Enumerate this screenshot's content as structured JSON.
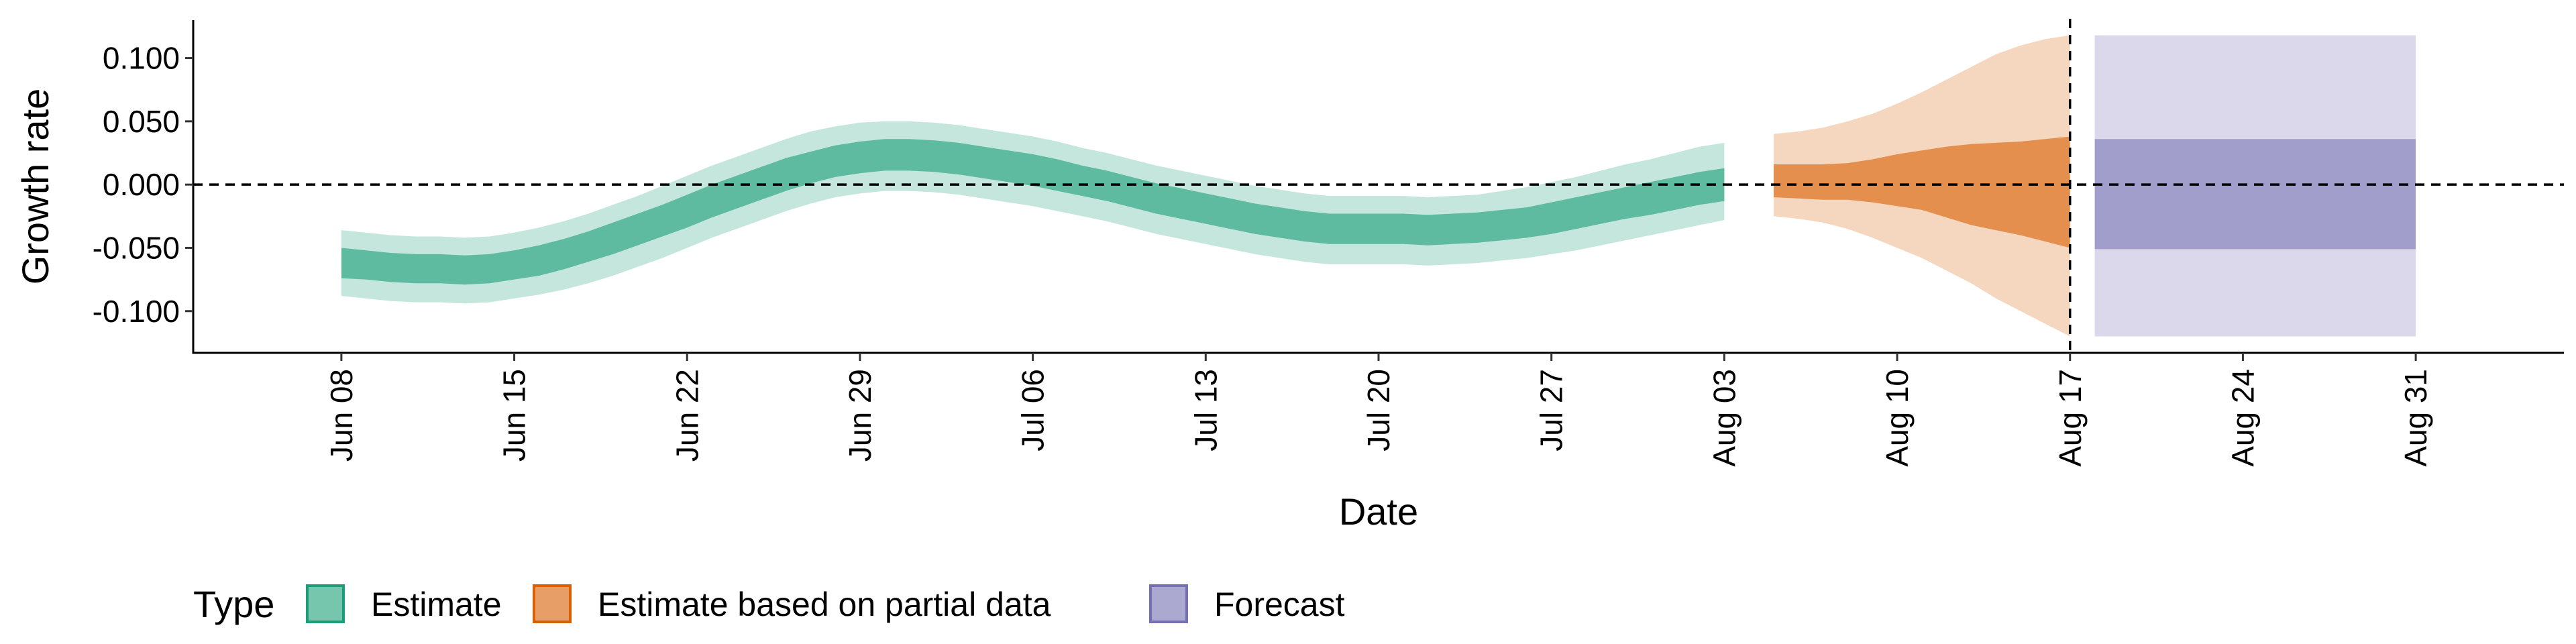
{
  "chart_data": {
    "type": "area",
    "xlabel": "Date",
    "ylabel": "Growth rate",
    "ylim": [
      -0.133,
      0.13
    ],
    "xlim": [
      "2021-06-02",
      "2021-09-06"
    ],
    "x_ticks": [
      "2021-06-08",
      "2021-06-15",
      "2021-06-22",
      "2021-06-29",
      "2021-07-06",
      "2021-07-13",
      "2021-07-20",
      "2021-07-27",
      "2021-08-03",
      "2021-08-10",
      "2021-08-17",
      "2021-08-24",
      "2021-08-31"
    ],
    "x_tick_labels": [
      "Jun 08",
      "Jun 15",
      "Jun 22",
      "Jun 29",
      "Jul 06",
      "Jul 13",
      "Jul 20",
      "Jul 27",
      "Aug 03",
      "Aug 10",
      "Aug 17",
      "Aug 24",
      "Aug 31"
    ],
    "y_ticks": [
      0.1,
      0.05,
      0.0,
      -0.05,
      -0.1
    ],
    "y_tick_labels": [
      "0.100",
      "0.050",
      "0.000",
      "-0.050",
      "-0.100"
    ],
    "hline": 0.0,
    "vline": "2021-08-17",
    "grid": false,
    "legend": {
      "title": "Type",
      "position": "bottom",
      "entries": [
        {
          "label": "Estimate",
          "color": "#1b9e77"
        },
        {
          "label": "Estimate based on partial data",
          "color": "#d95f02"
        },
        {
          "label": "Forecast",
          "color": "#7570b3"
        }
      ]
    },
    "series": [
      {
        "name": "Estimate",
        "color": "#1b9e77",
        "x": [
          "2021-06-08",
          "2021-06-09",
          "2021-06-10",
          "2021-06-11",
          "2021-06-12",
          "2021-06-13",
          "2021-06-14",
          "2021-06-15",
          "2021-06-16",
          "2021-06-17",
          "2021-06-18",
          "2021-06-19",
          "2021-06-20",
          "2021-06-21",
          "2021-06-22",
          "2021-06-23",
          "2021-06-24",
          "2021-06-25",
          "2021-06-26",
          "2021-06-27",
          "2021-06-28",
          "2021-06-29",
          "2021-06-30",
          "2021-07-01",
          "2021-07-02",
          "2021-07-03",
          "2021-07-04",
          "2021-07-05",
          "2021-07-06",
          "2021-07-07",
          "2021-07-08",
          "2021-07-09",
          "2021-07-10",
          "2021-07-11",
          "2021-07-12",
          "2021-07-13",
          "2021-07-14",
          "2021-07-15",
          "2021-07-16",
          "2021-07-17",
          "2021-07-18",
          "2021-07-19",
          "2021-07-20",
          "2021-07-21",
          "2021-07-22",
          "2021-07-23",
          "2021-07-24",
          "2021-07-25",
          "2021-07-26",
          "2021-07-27",
          "2021-07-28",
          "2021-07-29",
          "2021-07-30",
          "2021-07-31",
          "2021-08-01",
          "2021-08-02",
          "2021-08-03"
        ],
        "lower_90": [
          -0.088,
          -0.09,
          -0.092,
          -0.093,
          -0.093,
          -0.094,
          -0.093,
          -0.09,
          -0.087,
          -0.083,
          -0.078,
          -0.072,
          -0.065,
          -0.058,
          -0.05,
          -0.042,
          -0.035,
          -0.028,
          -0.021,
          -0.015,
          -0.01,
          -0.007,
          -0.005,
          -0.005,
          -0.006,
          -0.008,
          -0.011,
          -0.014,
          -0.017,
          -0.021,
          -0.025,
          -0.029,
          -0.034,
          -0.039,
          -0.043,
          -0.047,
          -0.051,
          -0.055,
          -0.058,
          -0.061,
          -0.063,
          -0.063,
          -0.063,
          -0.063,
          -0.064,
          -0.063,
          -0.062,
          -0.06,
          -0.058,
          -0.055,
          -0.052,
          -0.048,
          -0.044,
          -0.04,
          -0.036,
          -0.032,
          -0.028
        ],
        "lower_50": [
          -0.074,
          -0.075,
          -0.077,
          -0.078,
          -0.078,
          -0.079,
          -0.078,
          -0.075,
          -0.072,
          -0.067,
          -0.061,
          -0.055,
          -0.048,
          -0.041,
          -0.034,
          -0.026,
          -0.019,
          -0.012,
          -0.005,
          0.001,
          0.006,
          0.009,
          0.011,
          0.011,
          0.01,
          0.008,
          0.005,
          0.002,
          -0.001,
          -0.005,
          -0.009,
          -0.013,
          -0.018,
          -0.023,
          -0.027,
          -0.031,
          -0.035,
          -0.039,
          -0.042,
          -0.045,
          -0.047,
          -0.047,
          -0.047,
          -0.047,
          -0.048,
          -0.047,
          -0.046,
          -0.044,
          -0.042,
          -0.039,
          -0.035,
          -0.031,
          -0.027,
          -0.024,
          -0.02,
          -0.016,
          -0.013
        ],
        "upper_50": [
          -0.05,
          -0.052,
          -0.054,
          -0.055,
          -0.055,
          -0.056,
          -0.055,
          -0.052,
          -0.048,
          -0.043,
          -0.037,
          -0.03,
          -0.023,
          -0.016,
          -0.008,
          0.0,
          0.007,
          0.014,
          0.021,
          0.026,
          0.031,
          0.034,
          0.036,
          0.036,
          0.035,
          0.033,
          0.03,
          0.027,
          0.024,
          0.02,
          0.015,
          0.011,
          0.006,
          0.001,
          -0.003,
          -0.007,
          -0.011,
          -0.015,
          -0.018,
          -0.021,
          -0.023,
          -0.023,
          -0.023,
          -0.023,
          -0.024,
          -0.023,
          -0.022,
          -0.02,
          -0.018,
          -0.014,
          -0.01,
          -0.006,
          -0.002,
          0.002,
          0.006,
          0.01,
          0.013
        ],
        "upper_90": [
          -0.036,
          -0.038,
          -0.04,
          -0.041,
          -0.041,
          -0.042,
          -0.041,
          -0.038,
          -0.034,
          -0.029,
          -0.023,
          -0.016,
          -0.009,
          -0.001,
          0.007,
          0.015,
          0.022,
          0.029,
          0.036,
          0.042,
          0.046,
          0.049,
          0.05,
          0.05,
          0.049,
          0.047,
          0.044,
          0.041,
          0.038,
          0.034,
          0.029,
          0.025,
          0.02,
          0.015,
          0.011,
          0.007,
          0.003,
          -0.001,
          -0.004,
          -0.007,
          -0.009,
          -0.009,
          -0.009,
          -0.009,
          -0.01,
          -0.009,
          -0.008,
          -0.005,
          -0.002,
          0.002,
          0.006,
          0.011,
          0.016,
          0.02,
          0.025,
          0.03,
          0.033
        ]
      },
      {
        "name": "Estimate based on partial data",
        "color": "#d95f02",
        "x": [
          "2021-08-05",
          "2021-08-06",
          "2021-08-07",
          "2021-08-08",
          "2021-08-09",
          "2021-08-10",
          "2021-08-11",
          "2021-08-12",
          "2021-08-13",
          "2021-08-14",
          "2021-08-15",
          "2021-08-16",
          "2021-08-17"
        ],
        "lower_90": [
          -0.025,
          -0.027,
          -0.03,
          -0.035,
          -0.042,
          -0.05,
          -0.058,
          -0.068,
          -0.078,
          -0.09,
          -0.1,
          -0.11,
          -0.12
        ],
        "lower_50": [
          -0.01,
          -0.011,
          -0.012,
          -0.012,
          -0.014,
          -0.017,
          -0.02,
          -0.026,
          -0.032,
          -0.036,
          -0.04,
          -0.045,
          -0.05
        ],
        "upper_50": [
          0.016,
          0.016,
          0.016,
          0.017,
          0.02,
          0.024,
          0.027,
          0.03,
          0.032,
          0.033,
          0.034,
          0.036,
          0.038
        ],
        "upper_90": [
          0.04,
          0.042,
          0.045,
          0.05,
          0.056,
          0.064,
          0.073,
          0.083,
          0.093,
          0.103,
          0.11,
          0.115,
          0.118
        ]
      },
      {
        "name": "Forecast",
        "color": "#7570b3",
        "x": [
          "2021-08-18",
          "2021-08-31"
        ],
        "lower_90": [
          -0.12,
          -0.12
        ],
        "lower_50": [
          -0.051,
          -0.051
        ],
        "upper_50": [
          0.036,
          0.036
        ],
        "upper_90": [
          0.118,
          0.118
        ]
      }
    ]
  }
}
